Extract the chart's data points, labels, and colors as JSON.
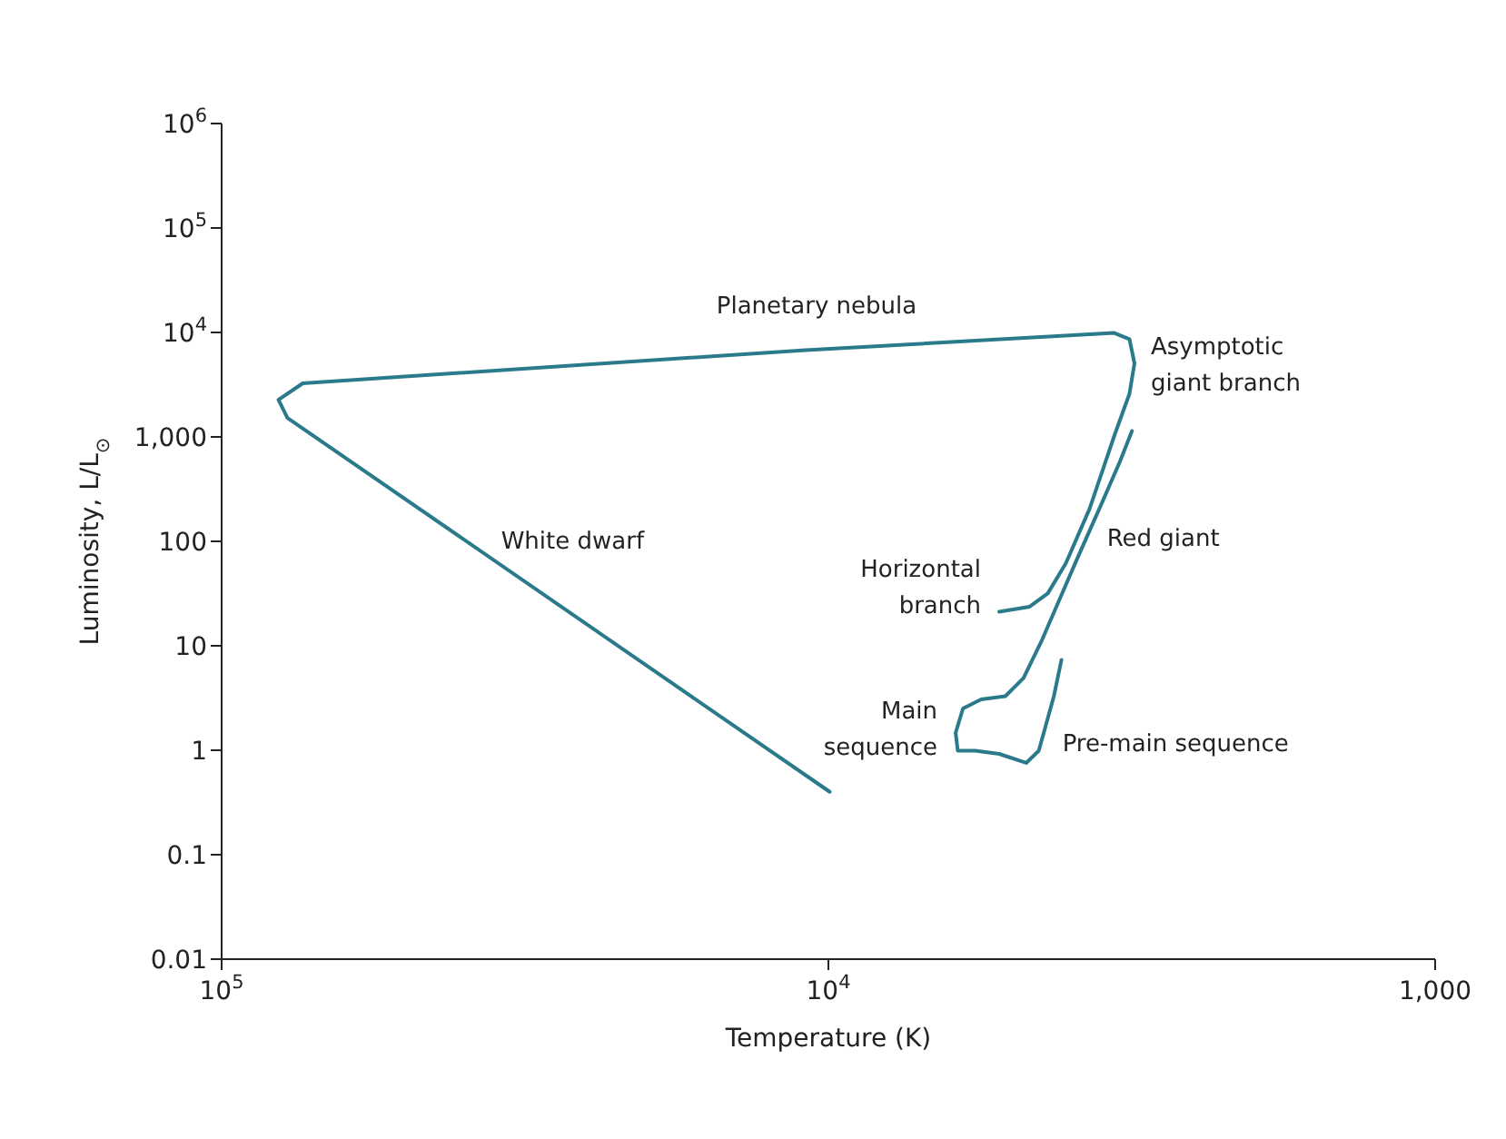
{
  "chart_data": {
    "type": "line",
    "xlabel": "Temperature (K)",
    "ylabel": "Luminosity, L/L$_{⊙}$",
    "log": "xy",
    "grid": false,
    "legend": false,
    "marker": "none",
    "line_style": "solid",
    "xlim": [
      100000,
      1000
    ],
    "xticks": [
      {
        "value": 100000,
        "label": "10$^{5}$"
      },
      {
        "value": 10000,
        "label": "10$^{4}$"
      },
      {
        "value": 1000,
        "label": "1,000"
      }
    ],
    "ylim": [
      0.01,
      1000000
    ],
    "yticks": [
      {
        "value": 0.01,
        "label": "0.01"
      },
      {
        "value": 0.1,
        "label": "0.1"
      },
      {
        "value": 1,
        "label": "1"
      },
      {
        "value": 10,
        "label": "10"
      },
      {
        "value": 100,
        "label": "100"
      },
      {
        "value": 1000,
        "label": "1,000"
      },
      {
        "value": 10000,
        "label": "10$^{4}$"
      },
      {
        "value": 100000,
        "label": "10$^{5}$"
      },
      {
        "value": 1000000,
        "label": "10$^{6}$"
      }
    ],
    "series": [
      {
        "color": "#2a7a8c",
        "x": [
          4130,
          4250,
          4500,
          4720,
          5230,
          5730,
          6120,
          6170,
          6000,
          5600,
          5110,
          4770,
          4460,
          4160,
          3880,
          3540,
          3300,
          3160
        ],
        "values": [
          7.32,
          3.29,
          0.99,
          0.756,
          0.923,
          0.99,
          0.99,
          1.47,
          2.51,
          3.07,
          3.29,
          4.9,
          10.9,
          27.8,
          70.6,
          235,
          599,
          1140
        ]
      },
      {
        "color": "#2a7a8c",
        "x": [
          5230,
          4660,
          4350,
          4060,
          3710,
          3380,
          3190,
          3130,
          3190,
          3380,
          10900,
          73500,
          80600,
          77900,
          9950
        ],
        "values": [
          21.2,
          23.7,
          31.7,
          61.8,
          206,
          1020,
          2590,
          5060,
          8630,
          9880,
          6780,
          3260,
          2270,
          1520,
          0.4
        ]
      }
    ],
    "annotations": [
      {
        "text": "Planetary nebula",
        "x": 10900,
        "y": 6780
      },
      {
        "text": "Asymptotic\ngiant branch",
        "x": 3130,
        "y": 5060
      },
      {
        "text": "White dwarf",
        "x": 39200,
        "y": 96.8
      },
      {
        "text": "Horizontal\nbranch",
        "x": 5230,
        "y": 21.2
      },
      {
        "text": "Red giant",
        "x": 3880,
        "y": 70.6
      },
      {
        "text": "Main\nsequence",
        "x": 6170,
        "y": 1.47
      },
      {
        "text": "Pre-main sequence",
        "x": 4500,
        "y": 0.99
      }
    ]
  }
}
